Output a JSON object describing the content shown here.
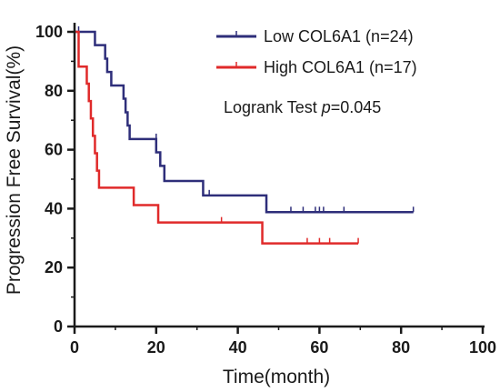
{
  "chart_data": {
    "type": "line",
    "subtype": "kaplan-meier",
    "xlabel": "Time(month)",
    "ylabel": "Progression Free Survival(%)",
    "xlim": [
      0,
      100
    ],
    "ylim": [
      0,
      100
    ],
    "xticks": [
      0,
      20,
      40,
      60,
      80,
      100
    ],
    "yticks": [
      0,
      20,
      40,
      60,
      80,
      100
    ],
    "grid": false,
    "legend_position": "top-right",
    "annotation": {
      "prefix": "Logrank Test ",
      "italic": "p",
      "suffix": "=0.045"
    },
    "series": [
      {
        "name": "Low COL6A1 (n=24)",
        "color": "#2e2e7a",
        "steps": [
          [
            0,
            100
          ],
          [
            5,
            95.5
          ],
          [
            7.5,
            90.9
          ],
          [
            8,
            86.4
          ],
          [
            9,
            81.8
          ],
          [
            12,
            77.3
          ],
          [
            12.5,
            72.7
          ],
          [
            13,
            68.2
          ],
          [
            13.5,
            63.6
          ],
          [
            20,
            59.1
          ],
          [
            21,
            54.5
          ],
          [
            22,
            49.4
          ],
          [
            31.5,
            44.5
          ],
          [
            47,
            38.8
          ],
          [
            83,
            38.8
          ]
        ],
        "censored": [
          [
            1,
            100
          ],
          [
            20,
            63.6
          ],
          [
            33,
            44.5
          ],
          [
            53,
            38.8
          ],
          [
            56,
            38.8
          ],
          [
            59,
            38.8
          ],
          [
            60,
            38.8
          ],
          [
            61,
            38.8
          ],
          [
            66,
            38.8
          ],
          [
            83,
            38.8
          ]
        ]
      },
      {
        "name": "High COL6A1 (n=17)",
        "color": "#e02a2a",
        "steps": [
          [
            0,
            100
          ],
          [
            1,
            88.2
          ],
          [
            3,
            82.4
          ],
          [
            3.5,
            76.5
          ],
          [
            4,
            70.6
          ],
          [
            4.5,
            64.7
          ],
          [
            5,
            58.8
          ],
          [
            5.5,
            52.9
          ],
          [
            6,
            47.1
          ],
          [
            14.5,
            41.2
          ],
          [
            20.5,
            35.3
          ],
          [
            46,
            28.2
          ],
          [
            69.5,
            28.2
          ]
        ],
        "censored": [
          [
            36,
            35.3
          ],
          [
            57,
            28.2
          ],
          [
            60,
            28.2
          ],
          [
            62.5,
            28.2
          ],
          [
            69.5,
            28.2
          ]
        ]
      }
    ]
  }
}
